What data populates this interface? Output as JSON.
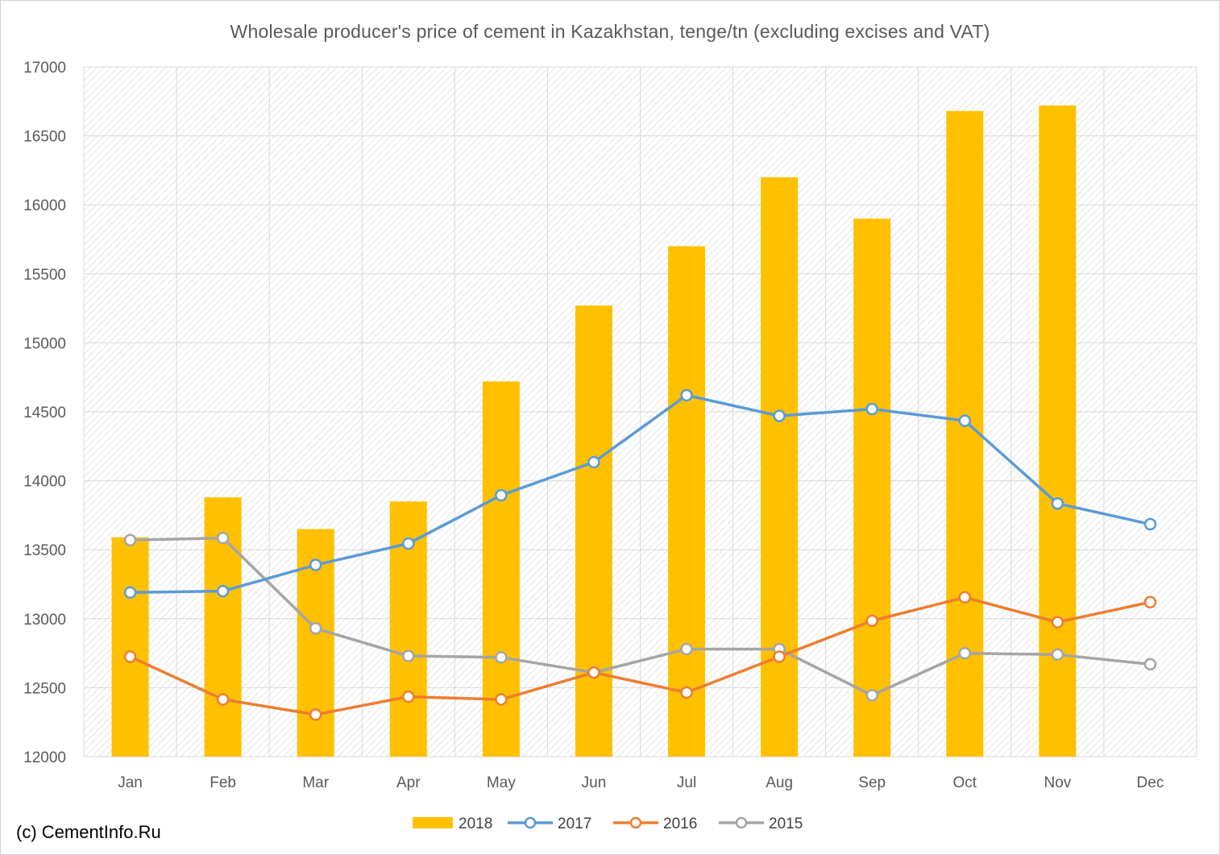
{
  "title": "Wholesale producer's price of cement in Kazakhstan, tenge/tn (excluding excises and VAT)",
  "credit": "(c) CementInfo.Ru",
  "chart_data": {
    "type": "bar+line",
    "title": "Wholesale producer's price of cement in Kazakhstan, tenge/tn (excluding excises and VAT)",
    "xlabel": "",
    "ylabel": "",
    "ylim": [
      12000,
      17000
    ],
    "yticks": [
      12000,
      12500,
      13000,
      13500,
      14000,
      14500,
      15000,
      15500,
      16000,
      16500,
      17000
    ],
    "grid": true,
    "legend_position": "bottom",
    "categories": [
      "Jan",
      "Feb",
      "Mar",
      "Apr",
      "May",
      "Jun",
      "Jul",
      "Aug",
      "Sep",
      "Oct",
      "Nov",
      "Dec"
    ],
    "series": [
      {
        "name": "2018",
        "kind": "bar",
        "color": "#FFC000",
        "values": [
          13590,
          13880,
          13650,
          13850,
          14720,
          15270,
          15700,
          16200,
          15900,
          16680,
          16720,
          null
        ]
      },
      {
        "name": "2017",
        "kind": "line",
        "color": "#5B9BD5",
        "values": [
          13190,
          13200,
          13390,
          13545,
          13895,
          14135,
          14620,
          14470,
          14520,
          14435,
          13835,
          13685
        ]
      },
      {
        "name": "2016",
        "kind": "line",
        "color": "#ED7D31",
        "values": [
          12725,
          12415,
          12305,
          12435,
          12415,
          12610,
          12465,
          12725,
          12985,
          13155,
          12975,
          13120
        ]
      },
      {
        "name": "2015",
        "kind": "line",
        "color": "#A5A5A5",
        "values": [
          13570,
          13585,
          12930,
          12730,
          12720,
          12610,
          12780,
          12780,
          12445,
          12750,
          12740,
          12670
        ]
      }
    ]
  }
}
